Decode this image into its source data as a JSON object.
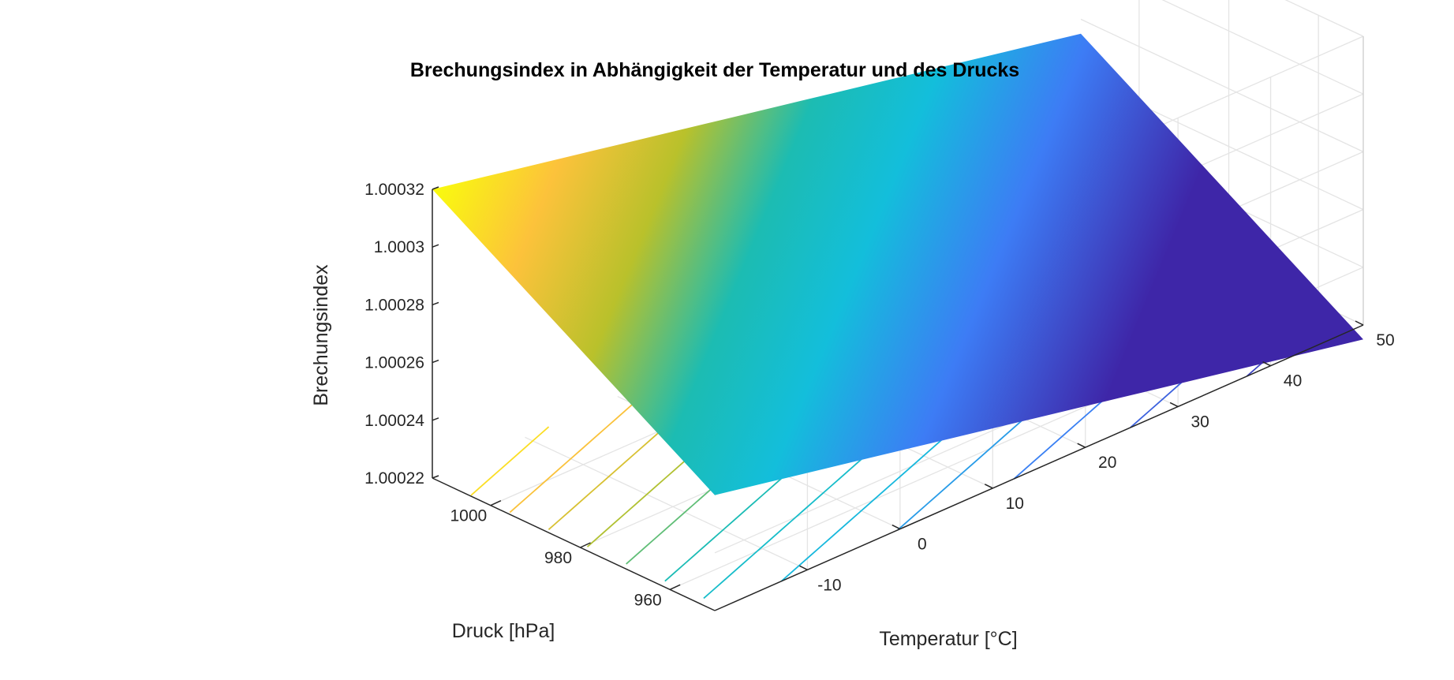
{
  "chart_data": {
    "type": "surface",
    "title": "Brechungsindex in Abhängigkeit der Temperatur und des Drucks",
    "xlabel": "Temperatur [°C]",
    "ylabel": "Druck [hPa]",
    "zlabel": "Brechungsindex",
    "xlim": [
      -20,
      50
    ],
    "ylim": [
      950,
      1013
    ],
    "zlim": [
      1.00022,
      1.00032
    ],
    "xticks": [
      -10,
      0,
      10,
      20,
      30,
      40,
      50
    ],
    "yticks": [
      960,
      980,
      1000
    ],
    "zticks": [
      1.00022,
      1.00024,
      1.00026,
      1.00028,
      1.0003,
      1.00032
    ],
    "ztick_labels": [
      "1.00022",
      "1.00024",
      "1.00026",
      "1.00028",
      "1.0003",
      "1.00032"
    ],
    "grid": true,
    "colormap": "parula",
    "surface_corners": [
      {
        "temperature": -20,
        "pressure": 1013,
        "index": 1.00032
      },
      {
        "temperature": 50,
        "pressure": 1013,
        "index": 1.000275
      },
      {
        "temperature": -20,
        "pressure": 950,
        "index": 1.00026
      },
      {
        "temperature": 50,
        "pressure": 950,
        "index": 1.000215
      }
    ],
    "contour_count": 12
  }
}
